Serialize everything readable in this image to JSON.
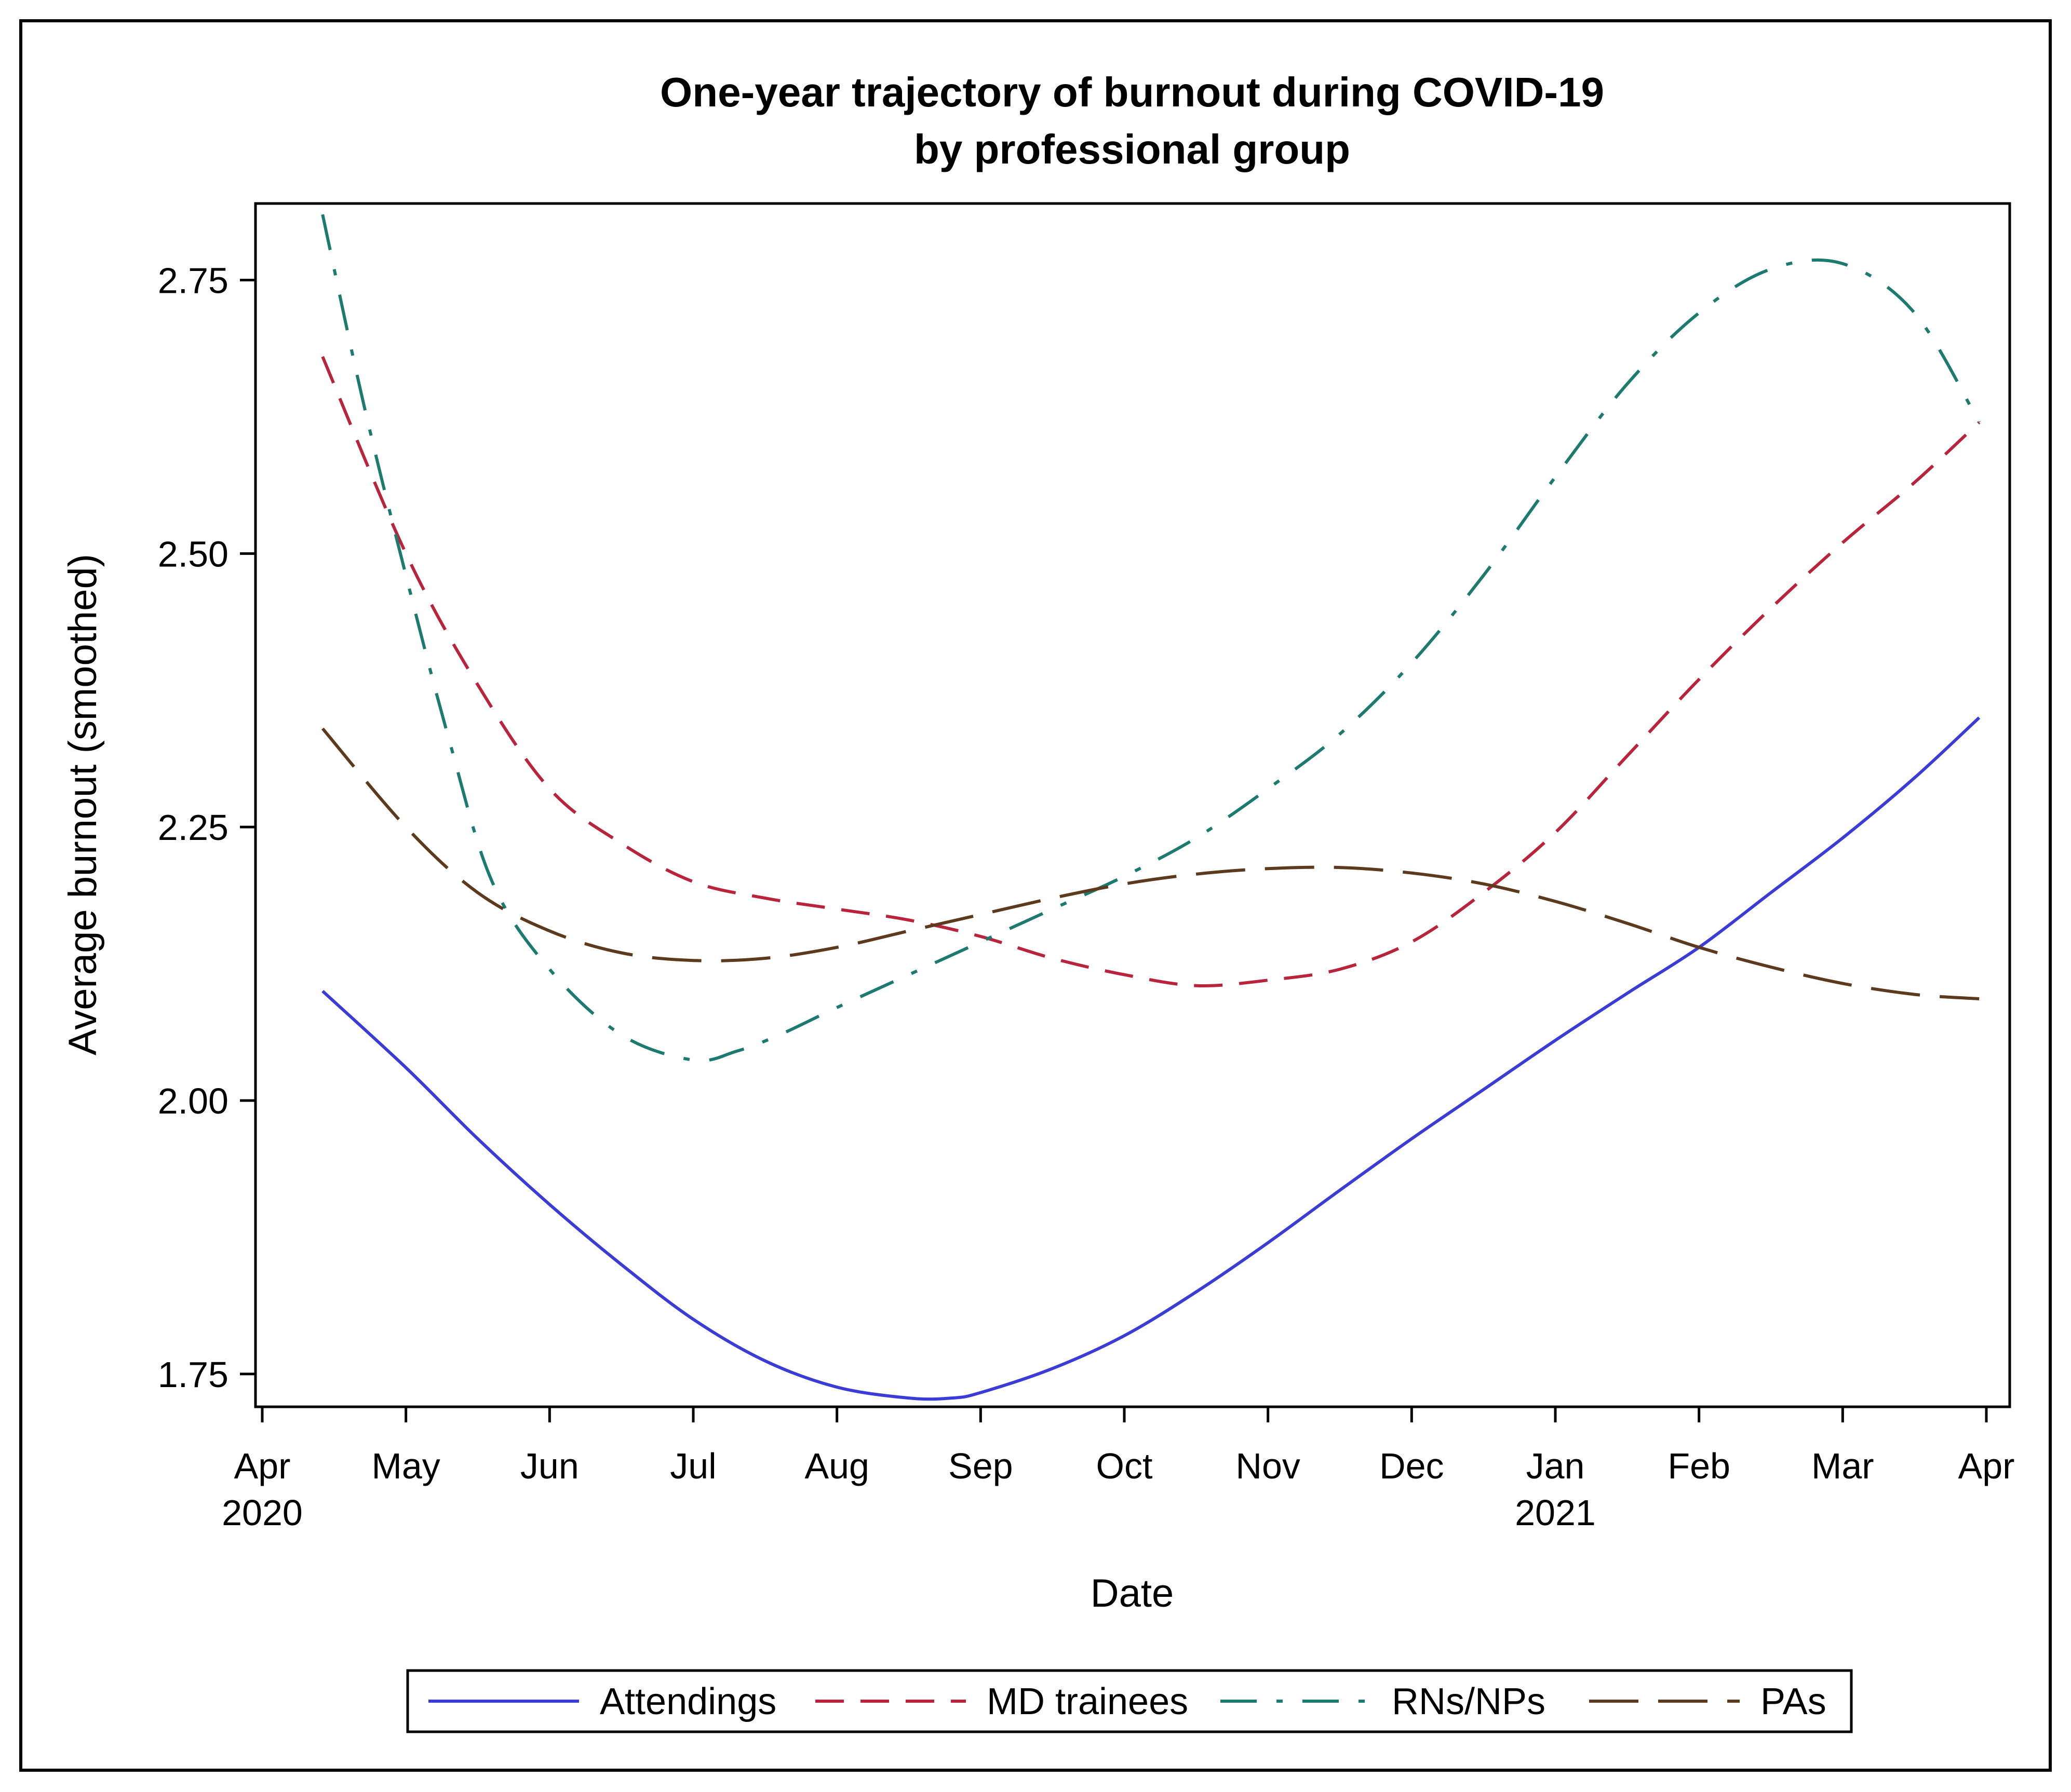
{
  "chart_data": {
    "type": "line",
    "title": "One-year trajectory of burnout during COVID-19",
    "subtitle": "by professional group",
    "xlabel": "Date",
    "ylabel": "Average burnout (smoothed)",
    "xlim": [
      0,
      12
    ],
    "ylim": [
      1.72,
      2.82
    ],
    "x_ticks": [
      {
        "value": 0,
        "label": "Apr",
        "year": "2020"
      },
      {
        "value": 1,
        "label": "May",
        "year": ""
      },
      {
        "value": 2,
        "label": "Jun",
        "year": ""
      },
      {
        "value": 3,
        "label": "Jul",
        "year": ""
      },
      {
        "value": 4,
        "label": "Aug",
        "year": ""
      },
      {
        "value": 5,
        "label": "Sep",
        "year": ""
      },
      {
        "value": 6,
        "label": "Oct",
        "year": ""
      },
      {
        "value": 7,
        "label": "Nov",
        "year": ""
      },
      {
        "value": 8,
        "label": "Dec",
        "year": ""
      },
      {
        "value": 9,
        "label": "Jan",
        "year": "2021"
      },
      {
        "value": 10,
        "label": "Feb",
        "year": ""
      },
      {
        "value": 11,
        "label": "Mar",
        "year": ""
      },
      {
        "value": 12,
        "label": "Apr",
        "year": ""
      }
    ],
    "y_ticks": [
      {
        "value": 1.75,
        "label": "1.75"
      },
      {
        "value": 2.0,
        "label": "2.00"
      },
      {
        "value": 2.25,
        "label": "2.25"
      },
      {
        "value": 2.5,
        "label": "2.50"
      },
      {
        "value": 2.75,
        "label": "2.75"
      }
    ],
    "series": [
      {
        "name": "Attendings",
        "color": "#3b3bd6",
        "dash": "solid",
        "x": [
          0.42,
          1.0,
          1.5,
          2.0,
          2.5,
          3.0,
          3.5,
          4.0,
          4.5,
          4.8,
          5.0,
          5.5,
          6.0,
          6.5,
          7.0,
          7.5,
          8.0,
          8.5,
          9.0,
          9.5,
          10.0,
          10.5,
          11.0,
          11.5,
          11.95
        ],
        "y": [
          2.1,
          2.03,
          1.965,
          1.905,
          1.85,
          1.8,
          1.762,
          1.738,
          1.728,
          1.728,
          1.733,
          1.755,
          1.785,
          1.825,
          1.87,
          1.918,
          1.965,
          2.01,
          2.055,
          2.098,
          2.14,
          2.19,
          2.24,
          2.295,
          2.35
        ]
      },
      {
        "name": "MD trainees",
        "color": "#b8243c",
        "dash": "dashed",
        "x": [
          0.42,
          1.0,
          1.5,
          2.0,
          2.5,
          3.0,
          3.5,
          4.0,
          4.5,
          5.0,
          5.5,
          6.0,
          6.5,
          7.0,
          7.5,
          8.0,
          8.5,
          9.0,
          9.5,
          10.0,
          10.5,
          11.0,
          11.5,
          11.95
        ],
        "y": [
          2.68,
          2.5,
          2.38,
          2.285,
          2.235,
          2.2,
          2.185,
          2.175,
          2.165,
          2.15,
          2.13,
          2.115,
          2.105,
          2.11,
          2.12,
          2.145,
          2.19,
          2.245,
          2.315,
          2.385,
          2.45,
          2.51,
          2.565,
          2.62
        ]
      },
      {
        "name": "RNs/NPs",
        "color": "#1d7a6e",
        "dash": "dashdot",
        "x": [
          0.42,
          0.7,
          1.0,
          1.3,
          1.6,
          2.0,
          2.5,
          3.0,
          3.3,
          3.6,
          4.0,
          4.5,
          5.0,
          5.5,
          6.0,
          6.5,
          7.0,
          7.5,
          8.0,
          8.5,
          9.0,
          9.5,
          10.0,
          10.5,
          11.0,
          11.5,
          11.95
        ],
        "y": [
          2.81,
          2.64,
          2.48,
          2.33,
          2.2,
          2.12,
          2.06,
          2.037,
          2.045,
          2.06,
          2.085,
          2.115,
          2.145,
          2.175,
          2.205,
          2.24,
          2.285,
          2.335,
          2.4,
          2.48,
          2.57,
          2.655,
          2.72,
          2.76,
          2.765,
          2.72,
          2.62
        ]
      },
      {
        "name": "PAs",
        "color": "#5c3a1e",
        "dash": "longdash",
        "x": [
          0.42,
          1.0,
          1.5,
          2.0,
          2.5,
          3.0,
          3.5,
          4.0,
          4.5,
          5.0,
          5.5,
          6.0,
          6.5,
          7.0,
          7.5,
          8.0,
          8.5,
          9.0,
          9.5,
          10.0,
          10.5,
          11.0,
          11.5,
          11.95
        ],
        "y": [
          2.34,
          2.25,
          2.19,
          2.155,
          2.135,
          2.128,
          2.13,
          2.14,
          2.155,
          2.17,
          2.185,
          2.198,
          2.207,
          2.212,
          2.213,
          2.208,
          2.198,
          2.182,
          2.162,
          2.14,
          2.122,
          2.107,
          2.097,
          2.093
        ]
      }
    ],
    "legend_position": "bottom"
  }
}
